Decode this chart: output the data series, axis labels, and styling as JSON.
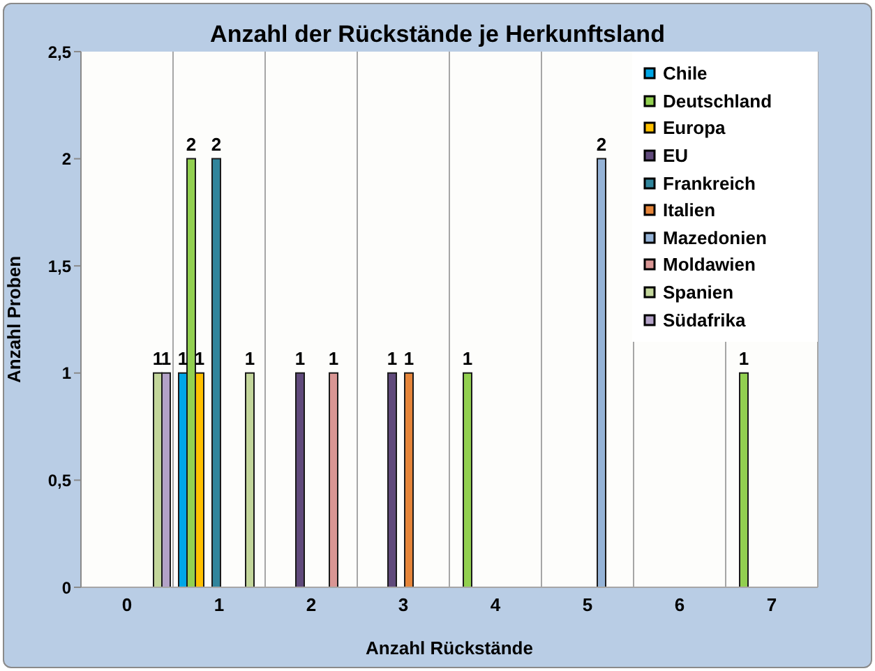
{
  "chart_data": {
    "type": "bar",
    "title": "Anzahl der Rückstände je Herkunftsland",
    "xlabel": "Anzahl Rückstände",
    "ylabel": "Anzahl Proben",
    "categories": [
      "0",
      "1",
      "2",
      "3",
      "4",
      "5",
      "6",
      "7"
    ],
    "series": [
      {
        "name": "Chile",
        "color": "#00a6e6",
        "values": [
          null,
          1,
          null,
          null,
          null,
          null,
          null,
          null
        ]
      },
      {
        "name": "Deutschland",
        "color": "#92d050",
        "values": [
          null,
          2,
          null,
          null,
          1,
          null,
          null,
          1
        ]
      },
      {
        "name": "Europa",
        "color": "#ffc000",
        "values": [
          null,
          1,
          null,
          null,
          null,
          null,
          null,
          null
        ]
      },
      {
        "name": "EU",
        "color": "#604a7b",
        "values": [
          null,
          null,
          1,
          1,
          null,
          null,
          null,
          null
        ]
      },
      {
        "name": "Frankreich",
        "color": "#31859c",
        "values": [
          null,
          2,
          null,
          null,
          null,
          null,
          null,
          null
        ]
      },
      {
        "name": "Italien",
        "color": "#e5853a",
        "values": [
          null,
          null,
          null,
          1,
          null,
          null,
          null,
          null
        ]
      },
      {
        "name": "Mazedonien",
        "color": "#95b3d7",
        "values": [
          null,
          null,
          null,
          null,
          null,
          2,
          null,
          null
        ]
      },
      {
        "name": "Moldawien",
        "color": "#d99694",
        "values": [
          null,
          null,
          1,
          null,
          null,
          null,
          null,
          null
        ]
      },
      {
        "name": "Spanien",
        "color": "#c3d69b",
        "values": [
          1,
          1,
          null,
          null,
          null,
          null,
          null,
          null
        ]
      },
      {
        "name": "Südafrika",
        "color": "#b3a2c7",
        "values": [
          1,
          null,
          null,
          null,
          null,
          null,
          null,
          null
        ]
      }
    ],
    "ylim": [
      0,
      2.5
    ],
    "yticks": [
      0,
      {
        "value": 0.5,
        "label": "0,5"
      },
      1,
      {
        "value": 1.5,
        "label": "1,5"
      },
      2,
      {
        "value": 2.5,
        "label": "2,5"
      }
    ],
    "grid": "x",
    "legend": "top right",
    "data_labels": true
  }
}
